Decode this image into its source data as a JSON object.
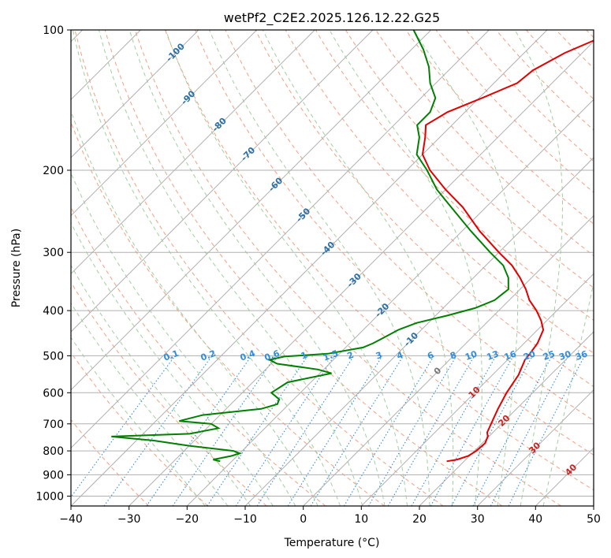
{
  "chart_data": {
    "type": "skew-t",
    "title": "wetPf2_C2E2.2025.126.12.22.G25",
    "xlabel": "Temperature (°C)",
    "ylabel": "Pressure (hPa)",
    "xlim": [
      -40,
      50
    ],
    "ylim": [
      1050,
      100
    ],
    "y_scale": "log",
    "grid": true,
    "x_ticks": [
      "−40",
      "−30",
      "−20",
      "−10",
      "0",
      "10",
      "20",
      "30",
      "40",
      "50"
    ],
    "y_ticks": [
      "100",
      "200",
      "300",
      "400",
      "500",
      "600",
      "700",
      "800",
      "900",
      "1000"
    ],
    "mixing_ratio_labels": [
      "0.1",
      "0.2",
      "0.4",
      "0.6",
      "1",
      "1.5",
      "2",
      "3",
      "4",
      "6",
      "8",
      "10",
      "13",
      "16",
      "20",
      "25",
      "30",
      "36"
    ],
    "isotherm_labels": [
      "-100",
      "-90",
      "-80",
      "-70",
      "-60",
      "-50",
      "-40",
      "-30",
      "-20",
      "-10",
      "0",
      "10",
      "20",
      "30",
      "40"
    ],
    "colors": {
      "temperature": "#e00000",
      "dewpoint": "#008000",
      "isotherm_cold": "#2a6fa8",
      "isotherm_zero": "#777777",
      "isotherm_warm": "#cc2222",
      "mixing_ratio": "#2f8de0",
      "dry_adiabat": "#f2a080",
      "moist_adiabat": "#9fd09f",
      "skewed_grid": "#b0b0b0"
    },
    "series": [
      {
        "name": "",
        "role": "temperature",
        "p": [
          842,
          835,
          820,
          800,
          770,
          745,
          730,
          700,
          650,
          600,
          550,
          510,
          495,
          470,
          440,
          420,
          400,
          380,
          360,
          340,
          320,
          300,
          270,
          240,
          220,
          200,
          185,
          170,
          160,
          150,
          140,
          130,
          122,
          112,
          105,
          100
        ],
        "t": [
          17.0,
          18.5,
          19.8,
          20.3,
          20.5,
          19.8,
          19.0,
          18.2,
          16.8,
          15.5,
          14.5,
          13.0,
          12.8,
          12.3,
          11.0,
          9.0,
          6.5,
          3.5,
          1.0,
          -2.0,
          -5.5,
          -10.0,
          -17.0,
          -24.0,
          -30.0,
          -36.0,
          -40.0,
          -42.5,
          -44.5,
          -43.0,
          -39.5,
          -36.0,
          -35.5,
          -33.0,
          -30.0,
          -28.0
        ]
      },
      {
        "name": "",
        "role": "dewpoint",
        "p": [
          842,
          835,
          820,
          810,
          800,
          780,
          760,
          745,
          735,
          715,
          700,
          690,
          670,
          650,
          635,
          620,
          600,
          570,
          545,
          535,
          520,
          510,
          502,
          495,
          480,
          470,
          455,
          440,
          425,
          410,
          395,
          380,
          360,
          340,
          320,
          300,
          270,
          240,
          220,
          200,
          185,
          170,
          160,
          150,
          140,
          130,
          120,
          110,
          100
        ],
        "t": [
          -22.0,
          -23.5,
          -21.0,
          -20.0,
          -21.5,
          -30.0,
          -37.0,
          -45.0,
          -32.0,
          -28.0,
          -30.0,
          -36.0,
          -33.0,
          -24.0,
          -22.0,
          -22.5,
          -25.0,
          -24.0,
          -18.0,
          -21.0,
          -29.0,
          -31.0,
          -29.0,
          -22.0,
          -17.0,
          -16.0,
          -15.0,
          -14.0,
          -12.0,
          -8.0,
          -4.5,
          -2.5,
          -2.0,
          -4.0,
          -7.0,
          -11.5,
          -18.5,
          -26.0,
          -31.5,
          -36.5,
          -41.0,
          -43.5,
          -46.0,
          -46.0,
          -47.5,
          -51.0,
          -54.0,
          -58.0,
          -63.0
        ]
      }
    ]
  }
}
